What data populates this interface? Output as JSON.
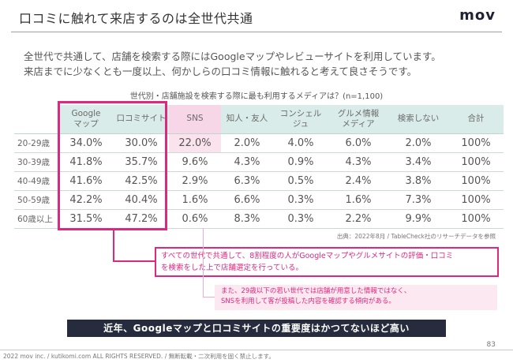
{
  "slide": {
    "title": "口コミに触れて来店するのは全世代共通",
    "logo": "mov",
    "lead_line1": "全世代で共通して、店舗を検索する際にはGoogleマップやレビューサイトを利用しています。",
    "lead_line2": "来店までに少なくとも一度以上、何かしらの口コミ情報に触れると考えて良さそうです。",
    "page_number": "83",
    "copyright": "2022 mov inc. / kutikomi.com ALL RIGHTS RESERVED. / 無断転載・二次利用を固く禁止します。"
  },
  "table": {
    "caption": "世代別・店舗施設を検索する際に最も利用するメディアは？(n=1,100)",
    "columns": [
      {
        "line1": "Google",
        "line2": "マップ"
      },
      {
        "line1": "口コミサイト",
        "line2": ""
      },
      {
        "line1": "SNS",
        "line2": ""
      },
      {
        "line1": "知人・友人",
        "line2": ""
      },
      {
        "line1": "コンシェル",
        "line2": "ジュ"
      },
      {
        "line1": "グルメ情報",
        "line2": "メディア"
      },
      {
        "line1": "検索しない",
        "line2": ""
      },
      {
        "line1": "合計",
        "line2": ""
      }
    ],
    "rows": [
      {
        "label": "20-29歳",
        "cells": [
          "34.0%",
          "30.0%",
          "22.0%",
          "2.0%",
          "4.0%",
          "6.0%",
          "2.0%",
          "100%"
        ]
      },
      {
        "label": "30-39歳",
        "cells": [
          "41.8%",
          "35.7%",
          "9.6%",
          "4.3%",
          "0.9%",
          "4.3%",
          "3.4%",
          "100%"
        ]
      },
      {
        "label": "40-49歳",
        "cells": [
          "41.6%",
          "42.5%",
          "2.9%",
          "6.3%",
          "0.5%",
          "2.4%",
          "3.8%",
          "100%"
        ]
      },
      {
        "label": "50-59歳",
        "cells": [
          "42.2%",
          "40.4%",
          "1.6%",
          "6.6%",
          "0.3%",
          "1.6%",
          "7.3%",
          "100%"
        ]
      },
      {
        "label": "60歳以上",
        "cells": [
          "31.5%",
          "47.2%",
          "0.6%",
          "8.3%",
          "0.3%",
          "2.2%",
          "9.9%",
          "100%"
        ]
      }
    ],
    "source": "出典：2022年8月 / TableCheck社のリサーチデータを参照"
  },
  "callout_primary": {
    "line1": "すべての世代で共通して、8割程度の人がGoogleマップやグルメサイトの評価・口コミ",
    "line2": "を検索をした上で店舗選定を行っている。"
  },
  "callout_secondary": {
    "line1": "また、29歳以下の若い世代では店舗が用意した情報ではなく、",
    "line2": "SNSを利用して客が投稿した内容を確認する傾向がある。"
  },
  "banner": {
    "text": "近年、Googleマップと口コミサイトの重要度はかつてないほど高い"
  },
  "colors": {
    "accent": "#e0277f",
    "header_bg": "#d9ece9",
    "highlight_bg": "#fbe3ee",
    "banner_bg": "#262c3d"
  }
}
